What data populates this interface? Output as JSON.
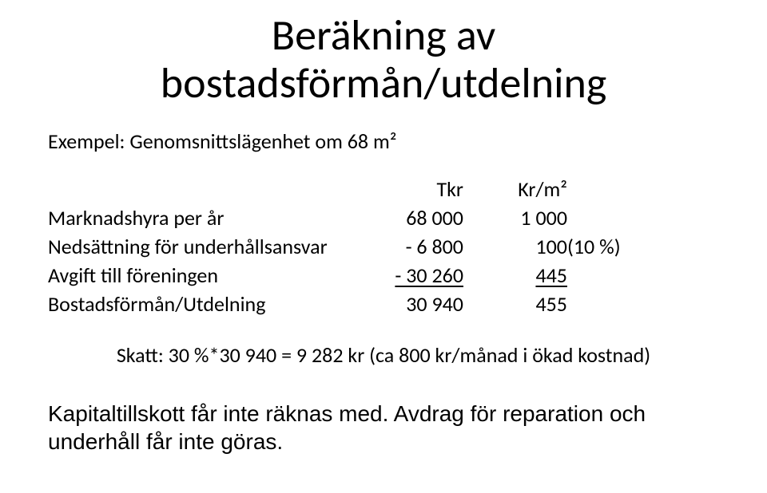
{
  "title": {
    "line1": "Beräkning av",
    "line2": "bostadsförmån/utdelning"
  },
  "subhead": "Exempel: Genomsnittslägenhet om 68 m²",
  "headers": {
    "tkr": "Tkr",
    "krm2": "Kr/m²"
  },
  "rows": {
    "r1": {
      "label": "Marknadshyra per år",
      "tkr": "68 000",
      "krm2": "1 000",
      "note": ""
    },
    "r2": {
      "label": "Nedsättning för underhållsansvar",
      "tkr": "-   6 800",
      "krm2": "100",
      "note": "(10 %)"
    },
    "r3": {
      "label": "Avgift till föreningen",
      "tkr": "- 30 260",
      "krm2": "445",
      "note": ""
    },
    "r4": {
      "label": "Bostadsförmån/Utdelning",
      "tkr": "30 940",
      "krm2": "455",
      "note": ""
    }
  },
  "skatt_line": "Skatt: 30 %*30 940 = 9 282 kr (ca 800 kr/månad i ökad kostnad)",
  "footnote": "Kapitaltillskott får inte räknas med. Avdrag för reparation och underhåll får inte göras."
}
